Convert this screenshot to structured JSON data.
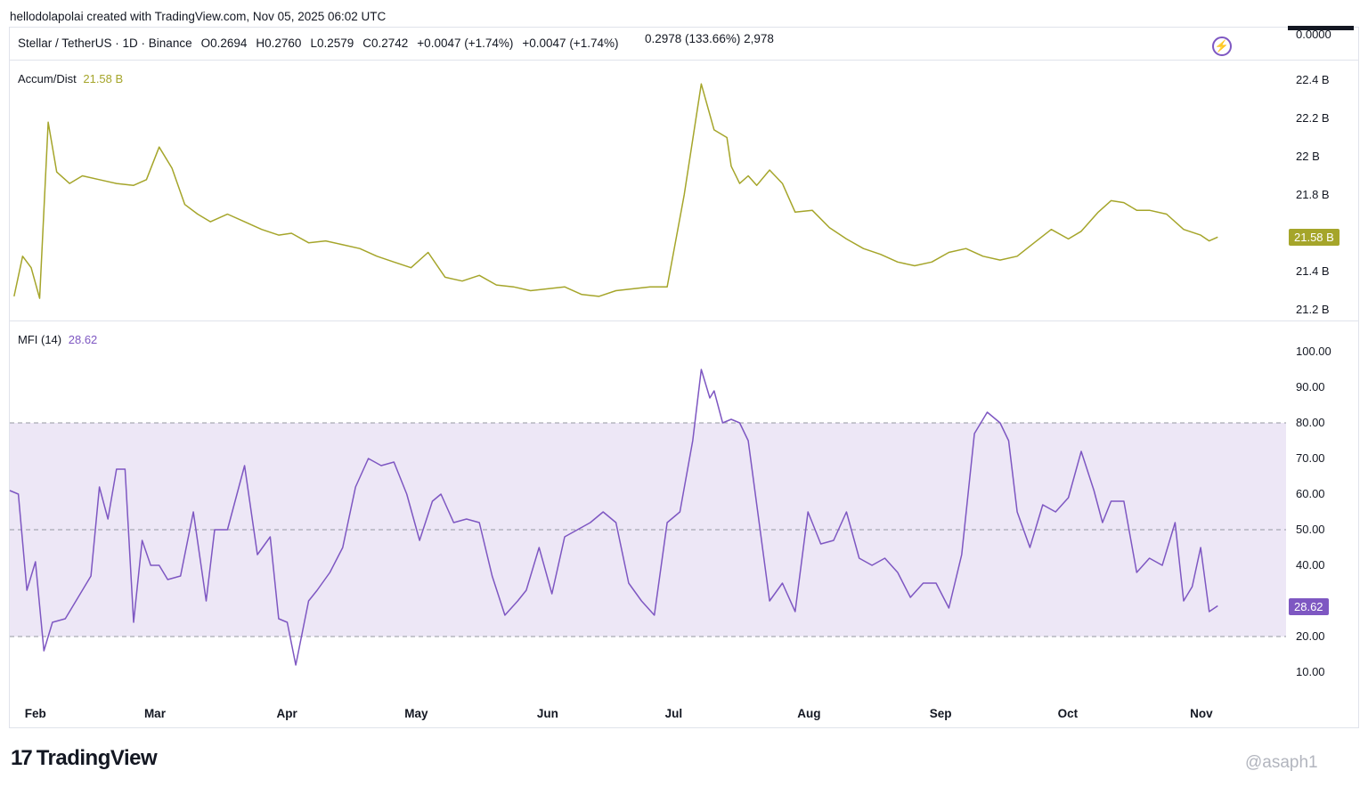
{
  "header": {
    "caption": "hellodolapolai created with TradingView.com, Nov 05, 2025 06:02 UTC",
    "symbol": "Stellar / TetherUS · 1D · Binance",
    "open": "O0.2694",
    "high": "H0.2760",
    "low": "L0.2579",
    "close": "C0.2742",
    "change1": "+0.0047 (+1.74%)",
    "change2": "+0.0047 (+1.74%)",
    "extra": "0.2978 (133.66%) 2,978",
    "cut_axis_label": "0.0000",
    "bolt_icon": "lightning-icon"
  },
  "colors": {
    "ad_line": "#a5a52a",
    "mfi_line": "#7e57c2",
    "mfi_band": "#ede7f6",
    "grid_dash": "#9598a1"
  },
  "chart_data": [
    {
      "type": "line",
      "title": "Accum/Dist",
      "last_value": "21.58 B",
      "badge": "21.58 B",
      "ylim": [
        21.16,
        22.46
      ],
      "y_ticks": [
        "22.4 B",
        "22.2 B",
        "22 B",
        "21.8 B",
        "21.4 B",
        "21.2 B"
      ],
      "y_tick_values": [
        22.4,
        22.2,
        22.0,
        21.8,
        21.4,
        21.2
      ],
      "series": [
        {
          "x": [
            "2025-01-27",
            "2025-01-29",
            "2025-01-31",
            "2025-02-02",
            "2025-02-04",
            "2025-02-06",
            "2025-02-09",
            "2025-02-12",
            "2025-02-16",
            "2025-02-20",
            "2025-02-24",
            "2025-02-27",
            "2025-03-02",
            "2025-03-05",
            "2025-03-08",
            "2025-03-11",
            "2025-03-14",
            "2025-03-18",
            "2025-03-22",
            "2025-03-26",
            "2025-03-30",
            "2025-04-02",
            "2025-04-06",
            "2025-04-10",
            "2025-04-14",
            "2025-04-18",
            "2025-04-22",
            "2025-04-26",
            "2025-04-30",
            "2025-05-04",
            "2025-05-08",
            "2025-05-12",
            "2025-05-16",
            "2025-05-20",
            "2025-05-24",
            "2025-05-28",
            "2025-06-01",
            "2025-06-05",
            "2025-06-09",
            "2025-06-13",
            "2025-06-17",
            "2025-06-21",
            "2025-06-25",
            "2025-06-29",
            "2025-07-03",
            "2025-07-07",
            "2025-07-10",
            "2025-07-13",
            "2025-07-14",
            "2025-07-16",
            "2025-07-18",
            "2025-07-20",
            "2025-07-23",
            "2025-07-26",
            "2025-07-29",
            "2025-08-02",
            "2025-08-06",
            "2025-08-10",
            "2025-08-14",
            "2025-08-18",
            "2025-08-22",
            "2025-08-26",
            "2025-08-30",
            "2025-09-03",
            "2025-09-07",
            "2025-09-11",
            "2025-09-15",
            "2025-09-19",
            "2025-09-23",
            "2025-09-27",
            "2025-10-01",
            "2025-10-04",
            "2025-10-08",
            "2025-10-11",
            "2025-10-14",
            "2025-10-17",
            "2025-10-20",
            "2025-10-24",
            "2025-10-28",
            "2025-11-01",
            "2025-11-03",
            "2025-11-05"
          ],
          "values": [
            21.27,
            21.48,
            21.42,
            21.26,
            22.18,
            21.92,
            21.86,
            21.9,
            21.88,
            21.86,
            21.85,
            21.88,
            22.05,
            21.94,
            21.75,
            21.7,
            21.66,
            21.7,
            21.66,
            21.62,
            21.59,
            21.6,
            21.55,
            21.56,
            21.54,
            21.52,
            21.48,
            21.45,
            21.42,
            21.5,
            21.37,
            21.35,
            21.38,
            21.33,
            21.32,
            21.3,
            21.31,
            21.32,
            21.28,
            21.27,
            21.3,
            21.31,
            21.32,
            21.32,
            21.8,
            22.38,
            22.14,
            22.1,
            21.95,
            21.86,
            21.9,
            21.85,
            21.93,
            21.86,
            21.71,
            21.72,
            21.63,
            21.57,
            21.52,
            21.49,
            21.45,
            21.43,
            21.45,
            21.5,
            21.52,
            21.48,
            21.46,
            21.48,
            21.55,
            21.62,
            21.57,
            21.61,
            21.71,
            21.77,
            21.76,
            21.72,
            21.72,
            21.7,
            21.62,
            21.59,
            21.56,
            21.58
          ]
        }
      ]
    },
    {
      "type": "line",
      "title": "MFI (14)",
      "last_value": "28.62",
      "badge": "28.62",
      "ylim": [
        5,
        105
      ],
      "y_ticks": [
        "100.00",
        "90.00",
        "80.00",
        "70.00",
        "60.00",
        "50.00",
        "40.00",
        "20.00",
        "10.00"
      ],
      "y_tick_values": [
        100,
        90,
        80,
        70,
        60,
        50,
        40,
        20,
        10
      ],
      "bands": {
        "upper": 80,
        "middle": 50,
        "lower": 20
      },
      "series": [
        {
          "x": [
            "2025-01-26",
            "2025-01-28",
            "2025-01-30",
            "2025-02-01",
            "2025-02-03",
            "2025-02-05",
            "2025-02-08",
            "2025-02-11",
            "2025-02-14",
            "2025-02-16",
            "2025-02-18",
            "2025-02-20",
            "2025-02-22",
            "2025-02-24",
            "2025-02-26",
            "2025-02-28",
            "2025-03-02",
            "2025-03-04",
            "2025-03-07",
            "2025-03-10",
            "2025-03-13",
            "2025-03-15",
            "2025-03-18",
            "2025-03-22",
            "2025-03-25",
            "2025-03-28",
            "2025-03-30",
            "2025-04-01",
            "2025-04-03",
            "2025-04-06",
            "2025-04-08",
            "2025-04-11",
            "2025-04-14",
            "2025-04-17",
            "2025-04-20",
            "2025-04-23",
            "2025-04-26",
            "2025-04-29",
            "2025-05-02",
            "2025-05-05",
            "2025-05-07",
            "2025-05-10",
            "2025-05-13",
            "2025-05-16",
            "2025-05-19",
            "2025-05-22",
            "2025-05-25",
            "2025-05-27",
            "2025-05-30",
            "2025-06-02",
            "2025-06-05",
            "2025-06-08",
            "2025-06-11",
            "2025-06-14",
            "2025-06-17",
            "2025-06-20",
            "2025-06-23",
            "2025-06-26",
            "2025-06-29",
            "2025-07-02",
            "2025-07-05",
            "2025-07-07",
            "2025-07-09",
            "2025-07-10",
            "2025-07-12",
            "2025-07-14",
            "2025-07-16",
            "2025-07-18",
            "2025-07-20",
            "2025-07-23",
            "2025-07-26",
            "2025-07-29",
            "2025-08-01",
            "2025-08-04",
            "2025-08-07",
            "2025-08-10",
            "2025-08-13",
            "2025-08-16",
            "2025-08-19",
            "2025-08-22",
            "2025-08-25",
            "2025-08-28",
            "2025-08-31",
            "2025-09-03",
            "2025-09-06",
            "2025-09-09",
            "2025-09-12",
            "2025-09-15",
            "2025-09-17",
            "2025-09-19",
            "2025-09-22",
            "2025-09-25",
            "2025-09-28",
            "2025-10-01",
            "2025-10-04",
            "2025-10-07",
            "2025-10-09",
            "2025-10-11",
            "2025-10-14",
            "2025-10-17",
            "2025-10-20",
            "2025-10-23",
            "2025-10-26",
            "2025-10-28",
            "2025-10-30",
            "2025-11-01",
            "2025-11-03",
            "2025-11-05"
          ],
          "values": [
            61,
            60,
            33,
            41,
            16,
            24,
            25,
            31,
            37,
            62,
            53,
            67,
            67,
            24,
            47,
            40,
            40,
            36,
            37,
            55,
            30,
            50,
            50,
            68,
            43,
            48,
            25,
            24,
            12,
            30,
            33,
            38,
            45,
            62,
            70,
            68,
            69,
            60,
            47,
            58,
            60,
            52,
            53,
            52,
            37,
            26,
            30,
            33,
            45,
            32,
            48,
            50,
            52,
            55,
            52,
            35,
            30,
            26,
            52,
            55,
            75,
            95,
            87,
            89,
            80,
            81,
            80,
            75,
            57,
            30,
            35,
            27,
            55,
            46,
            47,
            55,
            42,
            40,
            42,
            38,
            31,
            35,
            35,
            28,
            43,
            77,
            83,
            80,
            75,
            55,
            45,
            57,
            55,
            59,
            72,
            61,
            52,
            58,
            58,
            38,
            42,
            40,
            52,
            30,
            34,
            45,
            27,
            28.62
          ]
        }
      ]
    }
  ],
  "x_axis": {
    "months": [
      "Feb",
      "Mar",
      "Apr",
      "May",
      "Jun",
      "Jul",
      "Aug",
      "Sep",
      "Oct",
      "Nov"
    ]
  },
  "footer": {
    "logo_mark": "17",
    "logo_text": "TradingView",
    "watermark": "@asaph1"
  }
}
